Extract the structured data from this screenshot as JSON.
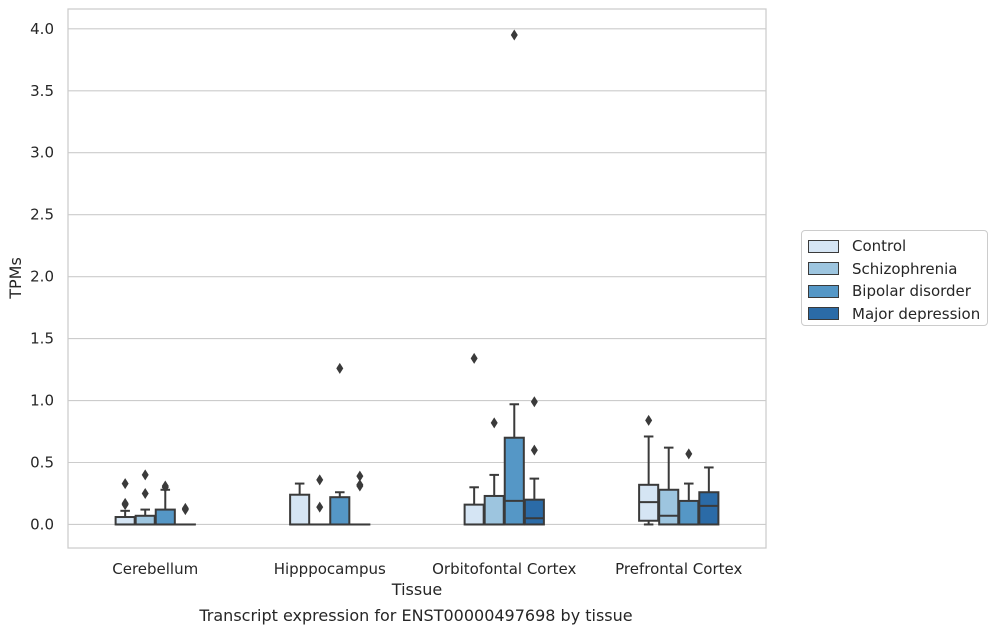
{
  "chart_data": {
    "type": "box",
    "xlabel": "Tissue",
    "ylabel": "TPMs",
    "caption": "Transcript expression for ENST00000497698 by tissue",
    "categories": [
      "Cerebellum",
      "Hipppocampus",
      "Orbitofontal Cortex",
      "Prefrontal Cortex"
    ],
    "ylim": [
      -0.19,
      4.16
    ],
    "yticks": [
      "0.0",
      "0.5",
      "1.0",
      "1.5",
      "2.0",
      "2.5",
      "3.0",
      "3.5",
      "4.0"
    ],
    "grid": "horizontal",
    "legend_position": "right",
    "series": [
      {
        "name": "Control",
        "color": "#d5e5f4",
        "boxes": [
          {
            "whisker_low": 0.0,
            "q1": 0.0,
            "median": 0.0,
            "q3": 0.06,
            "whisker_high": 0.11,
            "outliers": [
              0.16,
              0.17,
              0.33
            ]
          },
          {
            "whisker_low": 0.0,
            "q1": 0.0,
            "median": 0.0,
            "q3": 0.24,
            "whisker_high": 0.33,
            "outliers": []
          },
          {
            "whisker_low": 0.0,
            "q1": 0.0,
            "median": 0.0,
            "q3": 0.16,
            "whisker_high": 0.3,
            "outliers": [
              1.34
            ]
          },
          {
            "whisker_low": 0.0,
            "q1": 0.03,
            "median": 0.18,
            "q3": 0.32,
            "whisker_high": 0.71,
            "outliers": [
              0.84
            ]
          }
        ]
      },
      {
        "name": "Schizophrenia",
        "color": "#9dc5df",
        "boxes": [
          {
            "whisker_low": 0.0,
            "q1": 0.0,
            "median": 0.0,
            "q3": 0.07,
            "whisker_high": 0.12,
            "outliers": [
              0.25,
              0.4
            ]
          },
          {
            "whisker_low": 0.0,
            "q1": 0.0,
            "median": 0.0,
            "q3": 0.0,
            "whisker_high": 0.0,
            "outliers": [
              0.14,
              0.36
            ]
          },
          {
            "whisker_low": 0.0,
            "q1": 0.0,
            "median": 0.0,
            "q3": 0.23,
            "whisker_high": 0.4,
            "outliers": [
              0.82
            ]
          },
          {
            "whisker_low": 0.0,
            "q1": 0.0,
            "median": 0.07,
            "q3": 0.28,
            "whisker_high": 0.62,
            "outliers": []
          }
        ]
      },
      {
        "name": "Bipolar disorder",
        "color": "#5597c6",
        "boxes": [
          {
            "whisker_low": 0.0,
            "q1": 0.0,
            "median": 0.0,
            "q3": 0.12,
            "whisker_high": 0.28,
            "outliers": [
              0.3,
              0.31
            ]
          },
          {
            "whisker_low": 0.0,
            "q1": 0.0,
            "median": 0.0,
            "q3": 0.22,
            "whisker_high": 0.26,
            "outliers": [
              1.26
            ]
          },
          {
            "whisker_low": 0.0,
            "q1": 0.0,
            "median": 0.19,
            "q3": 0.7,
            "whisker_high": 0.97,
            "outliers": [
              3.95
            ]
          },
          {
            "whisker_low": 0.0,
            "q1": 0.0,
            "median": 0.0,
            "q3": 0.19,
            "whisker_high": 0.33,
            "outliers": [
              0.57
            ]
          }
        ]
      },
      {
        "name": "Major depression",
        "color": "#2b6ba7",
        "boxes": [
          {
            "whisker_low": 0.0,
            "q1": 0.0,
            "median": 0.0,
            "q3": 0.0,
            "whisker_high": 0.0,
            "outliers": [
              0.12,
              0.13
            ]
          },
          {
            "whisker_low": 0.0,
            "q1": 0.0,
            "median": 0.0,
            "q3": 0.0,
            "whisker_high": 0.0,
            "outliers": [
              0.31,
              0.32,
              0.39
            ]
          },
          {
            "whisker_low": 0.0,
            "q1": 0.0,
            "median": 0.05,
            "q3": 0.2,
            "whisker_high": 0.37,
            "outliers": [
              0.6,
              0.99
            ]
          },
          {
            "whisker_low": 0.0,
            "q1": 0.0,
            "median": 0.15,
            "q3": 0.26,
            "whisker_high": 0.46,
            "outliers": []
          }
        ]
      }
    ]
  }
}
